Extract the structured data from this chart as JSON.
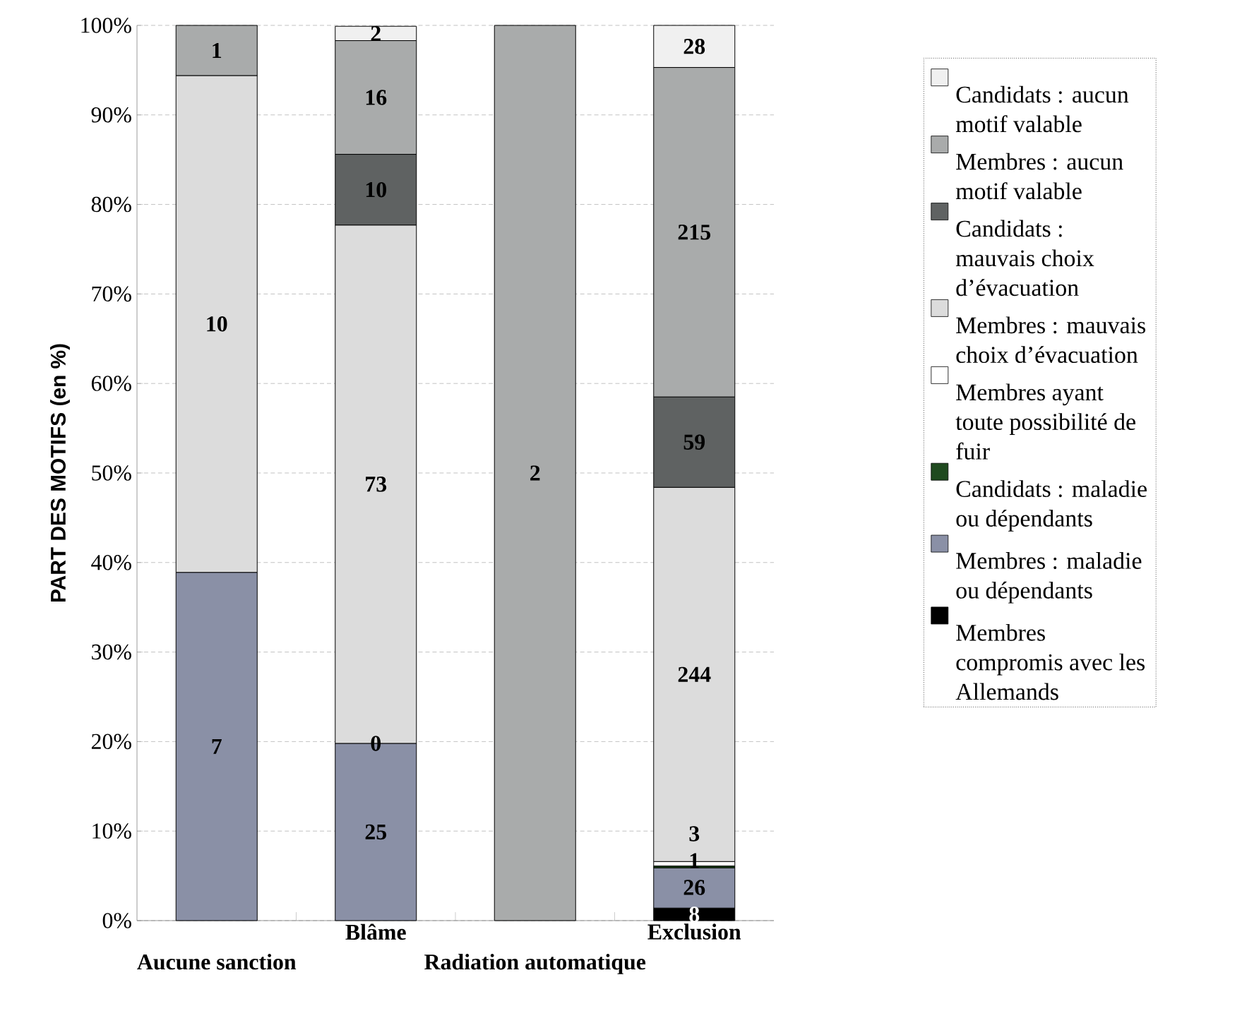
{
  "chart_data": {
    "type": "bar",
    "stacked": true,
    "ylabel": "PART DES MOTIFS (en %)",
    "categories": [
      "Aucune sanction",
      "Blâme",
      "Radiation automatique",
      "Exclusion"
    ],
    "ylim": [
      0,
      100
    ],
    "yticks": [
      {
        "value": 0,
        "label": "0%"
      },
      {
        "value": 10,
        "label": "10%"
      },
      {
        "value": 20,
        "label": "20%"
      },
      {
        "value": 30,
        "label": "30%"
      },
      {
        "value": 40,
        "label": "40%"
      },
      {
        "value": 50,
        "label": "50%"
      },
      {
        "value": 60,
        "label": "60%"
      },
      {
        "value": 70,
        "label": "70%"
      },
      {
        "value": 80,
        "label": "80%"
      },
      {
        "value": 90,
        "label": "90%"
      },
      {
        "value": 100,
        "label": "100%"
      }
    ],
    "grid": "y",
    "legend": "right",
    "series": [
      {
        "name": "Membres compromis avec les Allemands",
        "color": "#000000",
        "values": [
          null,
          null,
          null,
          1.4
        ]
      },
      {
        "name": "Membres : maladie ou dépendants",
        "color": "#8a90a6",
        "values": [
          38.9,
          19.8,
          null,
          4.5
        ]
      },
      {
        "name": "Candidats : maladie ou dépendants",
        "color": "#1f4a1f",
        "values": [
          null,
          0,
          null,
          0.2
        ]
      },
      {
        "name": "Membres ayant toute possibilité de fuir",
        "color": "#ffffff",
        "values": [
          null,
          null,
          null,
          0.5
        ]
      },
      {
        "name": "Membres : mauvais choix d’évacuation",
        "color": "#dcdcdc",
        "values": [
          55.5,
          57.9,
          null,
          41.8
        ]
      },
      {
        "name": "Candidats : mauvais choix d’évacuation",
        "color": "#5f6262",
        "values": [
          null,
          7.9,
          null,
          10.1
        ]
      },
      {
        "name": "Membres : aucun motif valable",
        "color": "#a9abab",
        "values": [
          5.6,
          12.7,
          100,
          36.8
        ]
      },
      {
        "name": "Candidats : aucun motif valable",
        "color": "#f0f0f0",
        "values": [
          null,
          1.6,
          null,
          4.7
        ]
      }
    ],
    "annotations": [
      "7",
      "10",
      "1",
      "25",
      "0",
      "73",
      "10",
      "16",
      "2",
      "2",
      "8",
      "26",
      "1",
      "3",
      "244",
      "59",
      "215",
      "28"
    ]
  }
}
